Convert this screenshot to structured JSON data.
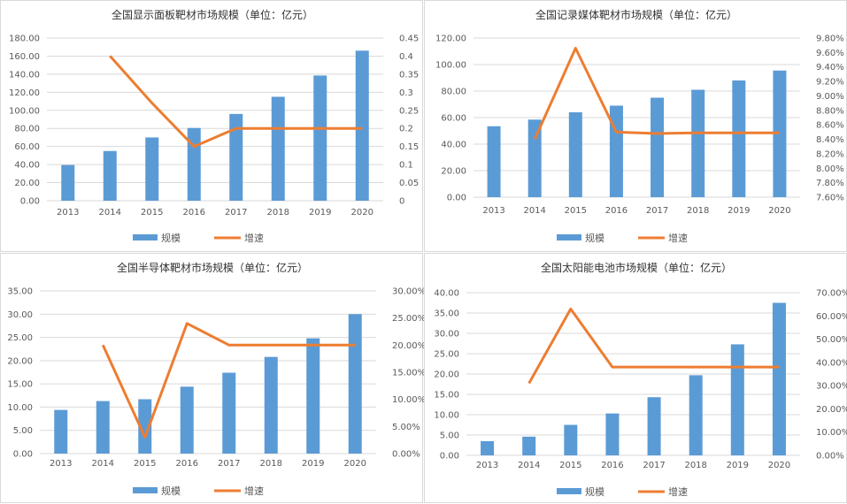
{
  "colors": {
    "bar": "#5b9bd5",
    "line": "#ed7d31",
    "grid": "#d9d9d9",
    "background": "#ffffff"
  },
  "chart_data": [
    {
      "type": "bar+line",
      "title": "全国显示面板靶材市场规模（单位：亿元）",
      "categories": [
        "2013",
        "2014",
        "2015",
        "2016",
        "2017",
        "2018",
        "2019",
        "2020"
      ],
      "series": [
        {
          "name": "规模",
          "type": "bar",
          "axis": "left",
          "values": [
            39.5,
            55,
            70,
            80.5,
            96,
            115,
            138.5,
            166
          ]
        },
        {
          "name": "增速",
          "type": "line",
          "axis": "right",
          "values": [
            null,
            0.4,
            0.27,
            0.15,
            0.2,
            0.2,
            0.2,
            0.2
          ]
        }
      ],
      "ylim_left": [
        0,
        180
      ],
      "yticks_left": [
        "0.00",
        "20.00",
        "40.00",
        "60.00",
        "80.00",
        "100.00",
        "120.00",
        "140.00",
        "160.00",
        "180.00"
      ],
      "ylim_right": [
        0,
        0.45
      ],
      "yticks_right": [
        "0",
        "0.05",
        "0.1",
        "0.15",
        "0.2",
        "0.25",
        "0.3",
        "0.35",
        "0.4",
        "0.45"
      ],
      "grid": true,
      "legend": "bottom"
    },
    {
      "type": "bar+line",
      "title": "全国记录媒体靶材市场规模（单位：亿元）",
      "categories": [
        "2013",
        "2014",
        "2015",
        "2016",
        "2017",
        "2018",
        "2019",
        "2020"
      ],
      "series": [
        {
          "name": "规模",
          "type": "bar",
          "axis": "left",
          "values": [
            53.5,
            58.5,
            64,
            69,
            75,
            81,
            88,
            95.5
          ]
        },
        {
          "name": "增速",
          "type": "line",
          "axis": "right",
          "values": [
            null,
            8.4,
            9.66,
            8.5,
            8.48,
            8.49,
            8.49,
            8.49
          ]
        }
      ],
      "ylim_left": [
        0,
        120
      ],
      "yticks_left": [
        "0.00",
        "20.00",
        "40.00",
        "60.00",
        "80.00",
        "100.00",
        "120.00"
      ],
      "ylim_right": [
        7.6,
        9.8
      ],
      "yticks_right": [
        "7.60%",
        "7.80%",
        "8.00%",
        "8.20%",
        "8.40%",
        "8.60%",
        "8.80%",
        "9.00%",
        "9.20%",
        "9.40%",
        "9.60%",
        "9.80%"
      ],
      "grid": true,
      "legend": "bottom"
    },
    {
      "type": "bar+line",
      "title": "全国半导体靶材市场规模（单位：亿元）",
      "categories": [
        "2013",
        "2014",
        "2015",
        "2016",
        "2017",
        "2018",
        "2019",
        "2020"
      ],
      "series": [
        {
          "name": "规模",
          "type": "bar",
          "axis": "left",
          "values": [
            9.4,
            11.3,
            11.7,
            14.4,
            17.4,
            20.8,
            24.8,
            30
          ]
        },
        {
          "name": "增速",
          "type": "line",
          "axis": "right",
          "values": [
            null,
            20,
            3,
            24,
            20,
            20,
            20,
            20
          ]
        }
      ],
      "ylim_left": [
        0,
        35
      ],
      "yticks_left": [
        "0.00",
        "5.00",
        "10.00",
        "15.00",
        "20.00",
        "25.00",
        "30.00",
        "35.00"
      ],
      "ylim_right": [
        0,
        30
      ],
      "yticks_right": [
        "0.00%",
        "5.00%",
        "10.00%",
        "15.00%",
        "20.00%",
        "25.00%",
        "30.00%"
      ],
      "grid": true,
      "legend": "bottom"
    },
    {
      "type": "bar+line",
      "title": "全国太阳能电池市场规模（单位：亿元）",
      "categories": [
        "2013",
        "2014",
        "2015",
        "2016",
        "2017",
        "2018",
        "2019",
        "2020"
      ],
      "series": [
        {
          "name": "规模",
          "type": "bar",
          "axis": "left",
          "values": [
            3.5,
            4.6,
            7.5,
            10.3,
            14.3,
            19.7,
            27.3,
            37.5
          ]
        },
        {
          "name": "增速",
          "type": "line",
          "axis": "right",
          "values": [
            null,
            31,
            63,
            38,
            38,
            38,
            38,
            38
          ]
        }
      ],
      "ylim_left": [
        0,
        40
      ],
      "yticks_left": [
        "0.00",
        "5.00",
        "10.00",
        "15.00",
        "20.00",
        "25.00",
        "30.00",
        "35.00",
        "40.00"
      ],
      "ylim_right": [
        0,
        70
      ],
      "yticks_right": [
        "0.00%",
        "10.00%",
        "20.00%",
        "30.00%",
        "40.00%",
        "50.00%",
        "60.00%",
        "70.00%"
      ],
      "grid": true,
      "legend": "bottom"
    }
  ]
}
